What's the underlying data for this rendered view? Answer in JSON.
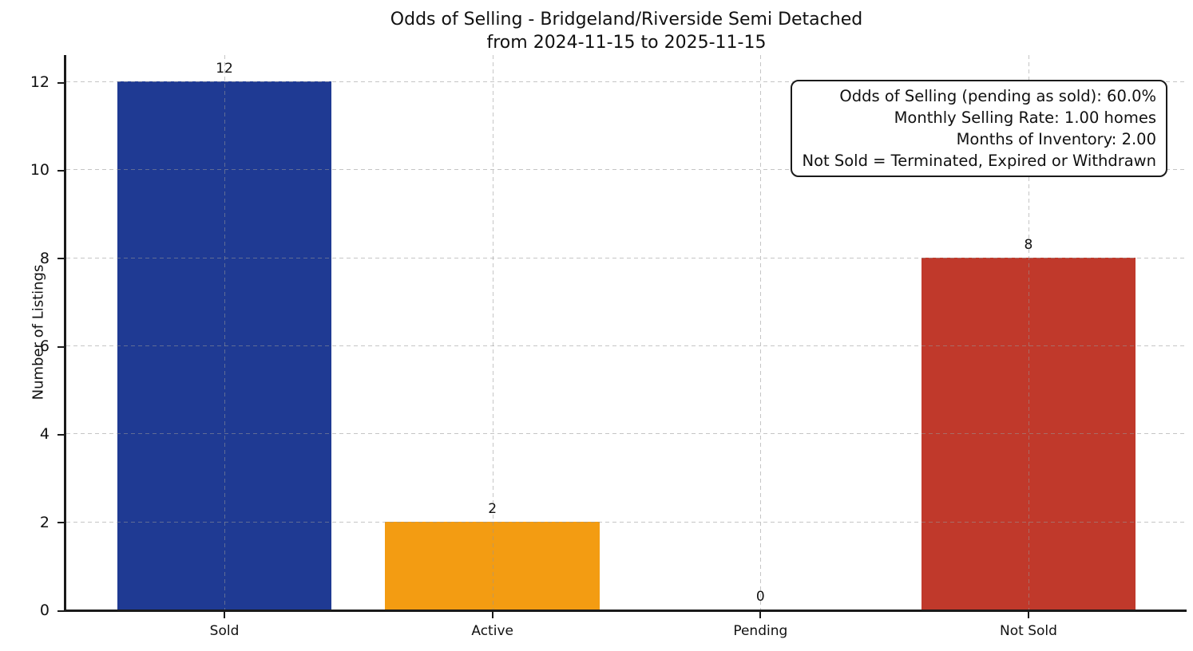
{
  "figure": {
    "background": "#ffffff"
  },
  "chart_data": {
    "type": "bar",
    "title": "Odds of Selling - Bridgeland/Riverside Semi Detached\nfrom 2024-11-15 to 2025-11-15",
    "title_lines": [
      "Odds of Selling - Bridgeland/Riverside Semi Detached",
      "from 2024-11-15 to 2025-11-15"
    ],
    "categories": [
      "Sold",
      "Active",
      "Pending",
      "Not Sold"
    ],
    "values": [
      12,
      2,
      0,
      8
    ],
    "value_labels": [
      "12",
      "2",
      "0",
      "8"
    ],
    "bar_colors": [
      "#1f3a93",
      "#f39c12",
      null,
      "#c0392b"
    ],
    "xlabel": "",
    "ylabel": "Number of Listings",
    "yticks": [
      0,
      2,
      4,
      6,
      8,
      10,
      12
    ],
    "ylim": [
      0,
      12.6
    ],
    "bar_width_fraction": 0.8,
    "grid": {
      "style": "dashed",
      "axes": "both",
      "color": "#bbbbbb",
      "drawn_on_top_of_bars": true
    },
    "legend": null,
    "axis_color": "#1a1a1a",
    "annotation_box": {
      "position": "top-right",
      "lines": [
        "Odds of Selling (pending as sold): 60.0%",
        "Monthly Selling Rate: 1.00 homes",
        "Months of Inventory: 2.00",
        "Not Sold = Terminated, Expired or Withdrawn"
      ]
    }
  }
}
